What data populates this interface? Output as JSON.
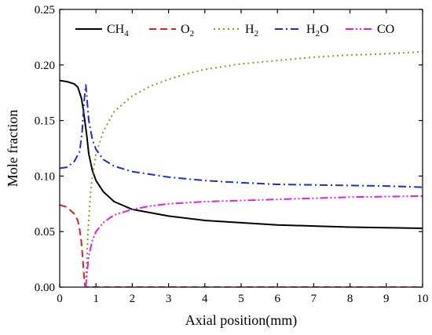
{
  "chart_data": {
    "type": "line",
    "title": "",
    "xlabel": "Axial position(mm)",
    "ylabel": "Mole fraction",
    "xlim": [
      0,
      10
    ],
    "ylim": [
      0,
      0.25
    ],
    "xticks": [
      "0",
      "1",
      "2",
      "3",
      "4",
      "5",
      "6",
      "7",
      "8",
      "9",
      "10"
    ],
    "yticks": [
      "0.00",
      "0.05",
      "0.10",
      "0.15",
      "0.20",
      "0.25"
    ],
    "grid": false,
    "legend_position": "top",
    "series": [
      {
        "name": "CH4",
        "label_main": "CH",
        "label_sub": "4",
        "color": "#000000",
        "dash": "solid",
        "x": [
          0,
          0.2,
          0.4,
          0.5,
          0.6,
          0.65,
          0.7,
          0.75,
          0.8,
          0.9,
          1.0,
          1.2,
          1.5,
          2,
          3,
          4,
          5,
          6,
          7,
          8,
          9,
          10
        ],
        "y": [
          0.186,
          0.185,
          0.183,
          0.18,
          0.17,
          0.16,
          0.148,
          0.135,
          0.12,
          0.105,
          0.096,
          0.086,
          0.077,
          0.07,
          0.064,
          0.06,
          0.058,
          0.056,
          0.055,
          0.054,
          0.0535,
          0.053
        ]
      },
      {
        "name": "O2",
        "label_main": "O",
        "label_sub": "2",
        "color": "#e02020",
        "dash": "dashed",
        "x": [
          0,
          0.2,
          0.4,
          0.5,
          0.55,
          0.6,
          0.63,
          0.66,
          0.68,
          0.7,
          0.72,
          0.75,
          1,
          2,
          3,
          4,
          5,
          6,
          7,
          8,
          9,
          10
        ],
        "y": [
          0.074,
          0.072,
          0.066,
          0.06,
          0.052,
          0.04,
          0.028,
          0.015,
          0.006,
          0.001,
          0.0,
          0.0,
          0,
          0,
          0,
          0,
          0,
          0,
          0,
          0,
          0,
          0
        ]
      },
      {
        "name": "H2",
        "label_main": "H",
        "label_sub": "2",
        "color": "#8a9a1e",
        "dash": "dotted",
        "x": [
          0.72,
          0.78,
          0.85,
          0.9,
          1.0,
          1.2,
          1.5,
          2,
          2.5,
          3,
          3.5,
          4,
          5,
          6,
          7,
          8,
          9,
          10
        ],
        "y": [
          0.0,
          0.05,
          0.085,
          0.1,
          0.12,
          0.14,
          0.158,
          0.172,
          0.181,
          0.187,
          0.192,
          0.196,
          0.201,
          0.204,
          0.207,
          0.209,
          0.21,
          0.212
        ]
      },
      {
        "name": "H2O",
        "label_main": "H",
        "label_sub": "2",
        "label_tail": "O",
        "color": "#1a2fd6",
        "dash": "dashdot",
        "x": [
          0,
          0.2,
          0.4,
          0.55,
          0.62,
          0.68,
          0.72,
          0.75,
          0.8,
          0.9,
          1.0,
          1.2,
          1.5,
          2,
          3,
          4,
          5,
          6,
          7,
          8,
          9,
          10
        ],
        "y": [
          0.107,
          0.108,
          0.113,
          0.122,
          0.14,
          0.17,
          0.182,
          0.17,
          0.15,
          0.133,
          0.124,
          0.115,
          0.109,
          0.104,
          0.099,
          0.096,
          0.094,
          0.0925,
          0.092,
          0.0915,
          0.091,
          0.09
        ]
      },
      {
        "name": "CO",
        "label_main": "CO",
        "label_sub": "",
        "color": "#e020e0",
        "dash": "dashdotdot",
        "x": [
          0.72,
          0.76,
          0.8,
          0.9,
          1.0,
          1.2,
          1.5,
          2,
          2.5,
          3,
          4,
          5,
          6,
          7,
          8,
          9,
          10
        ],
        "y": [
          0.0,
          0.015,
          0.028,
          0.042,
          0.05,
          0.058,
          0.065,
          0.07,
          0.073,
          0.075,
          0.077,
          0.078,
          0.079,
          0.08,
          0.081,
          0.0815,
          0.082
        ]
      }
    ]
  }
}
